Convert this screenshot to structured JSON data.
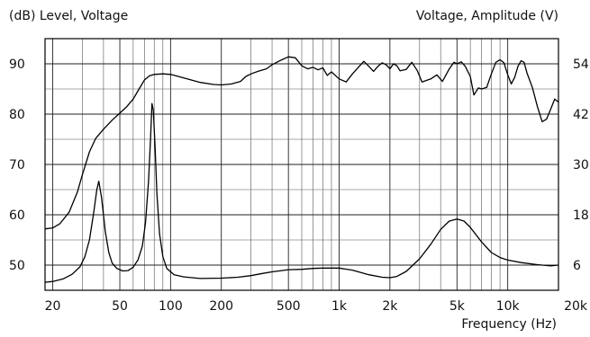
{
  "chart_data": {
    "type": "line",
    "title": "",
    "left_axis_label": "(dB)  Level, Voltage",
    "right_axis_label": "Voltage, Amplitude  (V)",
    "xlabel": "Frequency  (Hz)",
    "x_scale": "log",
    "xlim": [
      18,
      20000
    ],
    "ylim": [
      45,
      95
    ],
    "y2lim": [
      0,
      60
    ],
    "grid": true,
    "x_ticks": [
      {
        "value": 20,
        "label": "20"
      },
      {
        "value": 50,
        "label": "50"
      },
      {
        "value": 100,
        "label": "100"
      },
      {
        "value": 200,
        "label": "200"
      },
      {
        "value": 500,
        "label": "500"
      },
      {
        "value": 1000,
        "label": "1k"
      },
      {
        "value": 2000,
        "label": "2k"
      },
      {
        "value": 5000,
        "label": "5k"
      },
      {
        "value": 10000,
        "label": "10k"
      },
      {
        "value": 20000,
        "label": "20k"
      }
    ],
    "y_ticks_left": [
      {
        "value": 90,
        "label": "90"
      },
      {
        "value": 80,
        "label": "80"
      },
      {
        "value": 70,
        "label": "70"
      },
      {
        "value": 60,
        "label": "60"
      },
      {
        "value": 50,
        "label": "50"
      }
    ],
    "y_ticks_right": [
      {
        "value": 54,
        "label": "54"
      },
      {
        "value": 42,
        "label": "42"
      },
      {
        "value": 30,
        "label": "30"
      },
      {
        "value": 18,
        "label": "18"
      },
      {
        "value": 6,
        "label": "6"
      }
    ],
    "series": [
      {
        "axis": "left",
        "points": [
          [
            18,
            57.2
          ],
          [
            20,
            57.4
          ],
          [
            22,
            58.2
          ],
          [
            25,
            60.5
          ],
          [
            28,
            64.5
          ],
          [
            30,
            68.0
          ],
          [
            33,
            72.5
          ],
          [
            36,
            75.2
          ],
          [
            40,
            77.0
          ],
          [
            45,
            78.8
          ],
          [
            50,
            80.2
          ],
          [
            55,
            81.5
          ],
          [
            60,
            83.0
          ],
          [
            65,
            85.0
          ],
          [
            70,
            86.8
          ],
          [
            75,
            87.6
          ],
          [
            80,
            87.9
          ],
          [
            90,
            88.0
          ],
          [
            100,
            87.9
          ],
          [
            120,
            87.2
          ],
          [
            150,
            86.3
          ],
          [
            180,
            85.9
          ],
          [
            200,
            85.8
          ],
          [
            230,
            86.0
          ],
          [
            260,
            86.5
          ],
          [
            280,
            87.5
          ],
          [
            300,
            88.0
          ],
          [
            330,
            88.5
          ],
          [
            370,
            89.0
          ],
          [
            400,
            89.8
          ],
          [
            450,
            90.7
          ],
          [
            500,
            91.4
          ],
          [
            550,
            91.2
          ],
          [
            600,
            89.6
          ],
          [
            650,
            89.0
          ],
          [
            700,
            89.3
          ],
          [
            750,
            88.8
          ],
          [
            800,
            89.2
          ],
          [
            850,
            87.7
          ],
          [
            900,
            88.4
          ],
          [
            1000,
            87.0
          ],
          [
            1100,
            86.4
          ],
          [
            1200,
            88.0
          ],
          [
            1400,
            90.5
          ],
          [
            1500,
            89.5
          ],
          [
            1600,
            88.5
          ],
          [
            1700,
            89.5
          ],
          [
            1800,
            90.2
          ],
          [
            1900,
            89.8
          ],
          [
            2000,
            89.0
          ],
          [
            2100,
            90.0
          ],
          [
            2200,
            89.6
          ],
          [
            2300,
            88.6
          ],
          [
            2500,
            88.9
          ],
          [
            2700,
            90.3
          ],
          [
            2900,
            88.7
          ],
          [
            3100,
            86.4
          ],
          [
            3500,
            87.0
          ],
          [
            3800,
            87.8
          ],
          [
            4100,
            86.5
          ],
          [
            4500,
            89.0
          ],
          [
            4800,
            90.3
          ],
          [
            5000,
            90.0
          ],
          [
            5300,
            90.4
          ],
          [
            5600,
            89.5
          ],
          [
            6000,
            87.5
          ],
          [
            6300,
            83.8
          ],
          [
            6700,
            85.2
          ],
          [
            7000,
            85.0
          ],
          [
            7500,
            85.3
          ],
          [
            8000,
            88.0
          ],
          [
            8500,
            90.3
          ],
          [
            9000,
            90.8
          ],
          [
            9500,
            90.2
          ],
          [
            10000,
            87.8
          ],
          [
            10500,
            86.0
          ],
          [
            11000,
            87.3
          ],
          [
            11500,
            89.5
          ],
          [
            12000,
            90.6
          ],
          [
            12500,
            90.3
          ],
          [
            13000,
            88.2
          ],
          [
            14000,
            85.3
          ],
          [
            15000,
            81.5
          ],
          [
            16000,
            78.5
          ],
          [
            17000,
            79.0
          ],
          [
            18000,
            81.0
          ],
          [
            19000,
            83.0
          ],
          [
            20000,
            82.4
          ]
        ]
      },
      {
        "axis": "right",
        "points": [
          [
            18,
            1.9
          ],
          [
            20,
            2.1
          ],
          [
            23,
            2.7
          ],
          [
            26,
            3.8
          ],
          [
            29,
            5.6
          ],
          [
            31,
            8.0
          ],
          [
            33,
            12.0
          ],
          [
            35,
            18.5
          ],
          [
            36.5,
            24.0
          ],
          [
            37.5,
            26.0
          ],
          [
            39,
            22.0
          ],
          [
            41,
            14.0
          ],
          [
            43,
            9.0
          ],
          [
            45,
            6.5
          ],
          [
            48,
            5.2
          ],
          [
            52,
            4.6
          ],
          [
            56,
            4.7
          ],
          [
            60,
            5.5
          ],
          [
            64,
            7.2
          ],
          [
            68,
            10.5
          ],
          [
            71,
            16.0
          ],
          [
            74,
            26.0
          ],
          [
            76,
            36.0
          ],
          [
            77.5,
            44.5
          ],
          [
            79,
            43.0
          ],
          [
            81,
            34.0
          ],
          [
            83,
            23.0
          ],
          [
            86,
            13.5
          ],
          [
            90,
            8.0
          ],
          [
            95,
            5.2
          ],
          [
            105,
            3.7
          ],
          [
            120,
            3.2
          ],
          [
            150,
            2.8
          ],
          [
            200,
            2.9
          ],
          [
            250,
            3.1
          ],
          [
            300,
            3.5
          ],
          [
            350,
            4.0
          ],
          [
            400,
            4.4
          ],
          [
            500,
            4.9
          ],
          [
            600,
            5.0
          ],
          [
            700,
            5.2
          ],
          [
            800,
            5.3
          ],
          [
            1000,
            5.3
          ],
          [
            1200,
            4.8
          ],
          [
            1500,
            3.7
          ],
          [
            1800,
            3.1
          ],
          [
            2000,
            3.0
          ],
          [
            2200,
            3.3
          ],
          [
            2500,
            4.5
          ],
          [
            3000,
            7.5
          ],
          [
            3500,
            11.0
          ],
          [
            4000,
            14.5
          ],
          [
            4500,
            16.5
          ],
          [
            5000,
            17.0
          ],
          [
            5500,
            16.5
          ],
          [
            6000,
            15.0
          ],
          [
            7000,
            11.5
          ],
          [
            8000,
            9.0
          ],
          [
            9000,
            7.8
          ],
          [
            10000,
            7.2
          ],
          [
            12000,
            6.6
          ],
          [
            15000,
            6.1
          ],
          [
            18000,
            5.8
          ],
          [
            20000,
            6.0
          ]
        ]
      }
    ]
  }
}
